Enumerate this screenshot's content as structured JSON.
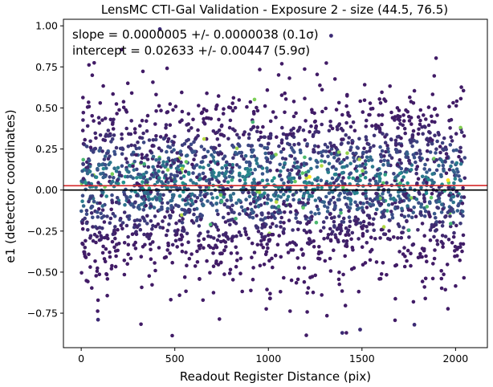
{
  "chart_data": {
    "type": "scatter",
    "title": "LensMC CTI-Gal Validation - Exposure 2 - size (44.5, 76.5)",
    "xlabel": "Readout Register Distance (pix)",
    "ylabel": "e1 (detector coordinates)",
    "xlim": [
      -95,
      2170
    ],
    "ylim": [
      -0.96,
      1.04
    ],
    "xticks": [
      0,
      500,
      1000,
      1500,
      2000
    ],
    "xtick_labels": [
      "0",
      "500",
      "1000",
      "1500",
      "2000"
    ],
    "yticks": [
      -0.75,
      -0.5,
      -0.25,
      0.0,
      0.25,
      0.5,
      0.75,
      1.0
    ],
    "ytick_labels": [
      "−0.75",
      "−0.50",
      "−0.25",
      "0.00",
      "0.25",
      "0.50",
      "0.75",
      "1.00"
    ],
    "grid": false,
    "annotations": [
      "slope = 0.0000005 +/- 0.0000038 (0.1σ)",
      "intercept = 0.02633 +/- 0.00447 (5.9σ)"
    ],
    "fit_line": {
      "slope": 5e-07,
      "intercept": 0.02633,
      "color": "#d62728"
    },
    "zero_line": {
      "y": 0.0,
      "color": "#000000"
    },
    "scatter": {
      "x_range": [
        0,
        2050
      ],
      "colormap": "viridis",
      "low_density_color": "#3b2a74",
      "high_density_color": "#fde725",
      "sample_points": [
        {
          "x": 420,
          "y": 0.98
        },
        {
          "x": 1335,
          "y": 0.94
        },
        {
          "x": 1395,
          "y": -0.87
        },
        {
          "x": 1490,
          "y": -0.85
        },
        {
          "x": 90,
          "y": -0.79
        },
        {
          "x": 1780,
          "y": -0.82
        },
        {
          "x": 1220,
          "y": 0.08
        },
        {
          "x": 1960,
          "y": 0.06
        }
      ]
    }
  }
}
